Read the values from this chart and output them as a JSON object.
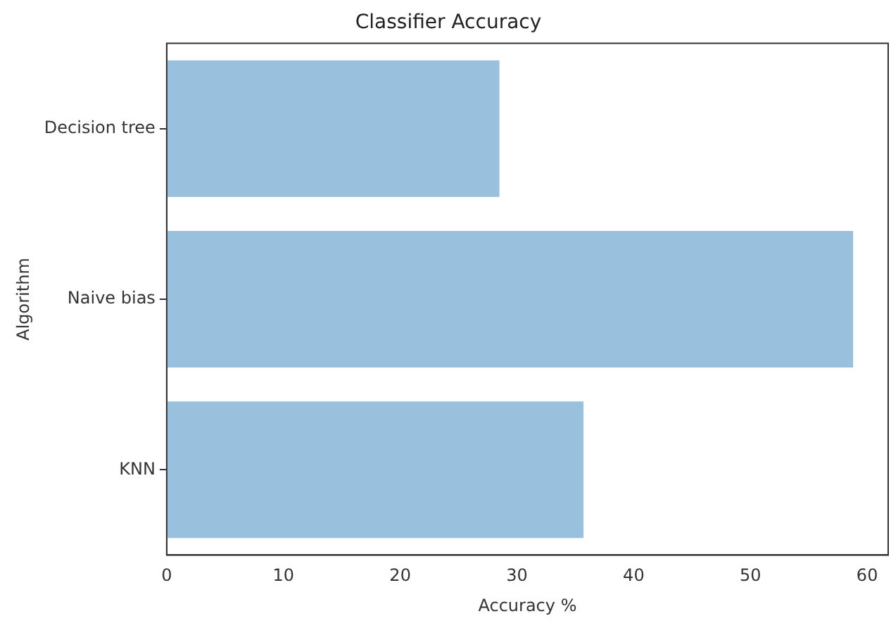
{
  "chart_data": {
    "type": "bar",
    "orientation": "horizontal",
    "title": "Classifier Accuracy",
    "xlabel": "Accuracy %",
    "ylabel": "Algorithm",
    "categories": [
      "Decision tree",
      "Naive bias",
      "KNN"
    ],
    "values": [
      28.5,
      58.8,
      35.7
    ],
    "color": "#99c0dd",
    "xlim": [
      0,
      61.8
    ],
    "xticks": [
      0,
      10,
      20,
      30,
      40,
      50,
      60
    ],
    "grid": false,
    "legend": false
  }
}
